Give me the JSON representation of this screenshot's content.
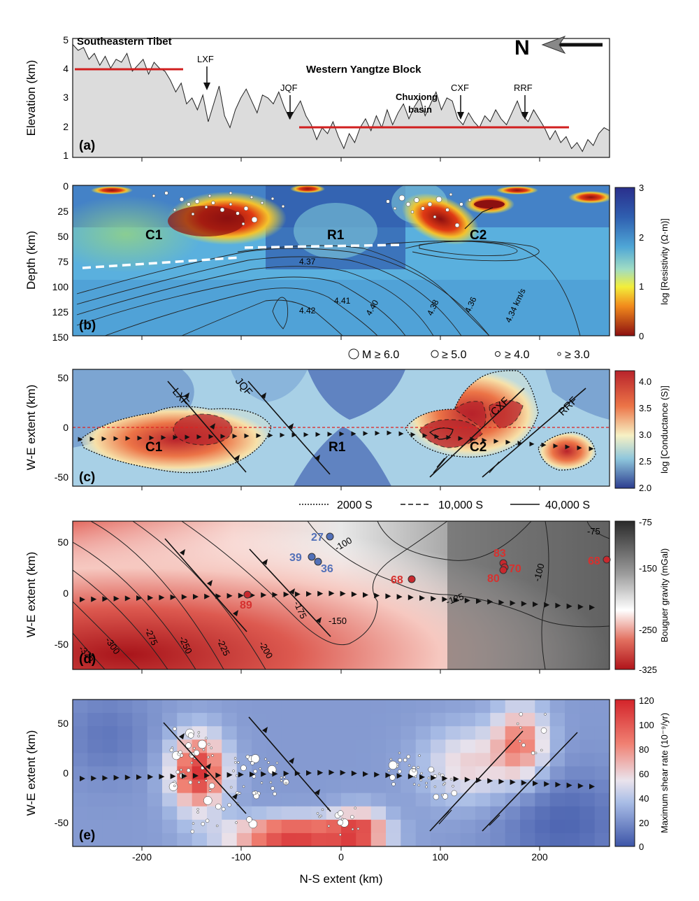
{
  "figure": {
    "axes": {
      "elevation_ylabel": "Elevation (km)",
      "depth_ylabel": "Depth (km)",
      "we_ylabel": "W-E extent (km)",
      "ns_xlabel": "N-S extent (km)",
      "x_ticks": [
        "-200",
        "-100",
        "0",
        "100",
        "200"
      ],
      "elev_ticks": [
        "1",
        "2",
        "3",
        "4",
        "5"
      ],
      "depth_ticks": [
        "0",
        "25",
        "50",
        "75",
        "100",
        "125",
        "150"
      ],
      "we_ticks_c": [
        "50",
        "0",
        "-50"
      ],
      "we_ticks_de": [
        "50",
        "0",
        "-50"
      ]
    },
    "panel_a": {
      "label": "(a)",
      "region_left": "Southeastern Tibet",
      "region_center": "Western Yangtze Block",
      "basin": "Chuxiong",
      "basin2": "basin",
      "faults": [
        "LXF",
        "JQF",
        "CXF",
        "RRF"
      ],
      "north": "N",
      "profile": [
        4.8,
        4.6,
        4.7,
        4.3,
        4.5,
        4.1,
        4.4,
        4.0,
        4.3,
        4.2,
        4.5,
        3.9,
        4.1,
        4.3,
        3.8,
        4.2,
        4.0,
        3.9,
        3.6,
        3.2,
        3.5,
        2.8,
        3.0,
        2.6,
        3.1,
        2.2,
        2.8,
        3.4,
        2.4,
        2.0,
        2.6,
        3.0,
        3.3,
        2.9,
        2.5,
        3.1,
        3.0,
        2.8,
        3.2,
        2.7,
        2.3,
        2.6,
        2.9,
        2.4,
        2.1,
        1.6,
        2.0,
        1.8,
        2.2,
        1.7,
        1.3,
        1.8,
        1.5,
        2.0,
        2.3,
        1.9,
        2.4,
        2.0,
        2.6,
        2.1,
        2.5,
        2.8,
        2.3,
        2.7,
        3.0,
        2.4,
        2.8,
        3.2,
        2.6,
        3.0,
        2.9,
        2.3,
        2.1,
        2.5,
        2.2,
        2.0,
        2.4,
        2.2,
        2.6,
        2.3,
        2.1,
        2.5,
        2.9,
        2.4,
        2.2,
        2.6,
        2.3,
        2.0,
        1.6,
        1.9,
        1.5,
        1.7,
        1.3,
        1.5,
        1.2,
        1.6,
        1.4,
        1.8,
        2.0,
        1.9
      ]
    },
    "panel_b": {
      "label": "(b)",
      "anomalies": [
        "C1",
        "R1",
        "C2"
      ],
      "contours": [
        "4.37",
        "4.42",
        "4.41",
        "4.40",
        "4.38",
        "4.36",
        "4.34 km/s"
      ],
      "colorbar_label": "log [Resistivity (Ω·m)]",
      "colorbar_ticks": [
        "3",
        "2",
        "1",
        "0"
      ],
      "legend": [
        "M ≥ 6.0",
        "≥ 5.0",
        "≥ 4.0",
        "≥ 3.0"
      ]
    },
    "panel_c": {
      "label": "(c)",
      "anomalies": [
        "C1",
        "R1",
        "C2"
      ],
      "faults": [
        "LXF",
        "JQF",
        "CXF",
        "RRF"
      ],
      "colorbar_label": "log [Conductance (S)]",
      "colorbar_ticks": [
        "4.0",
        "3.5",
        "3.0",
        "2.5",
        "2.0"
      ],
      "legend": [
        "2000 S",
        "10,000 S",
        "40,000 S"
      ]
    },
    "panel_d": {
      "label": "(d)",
      "colorbar_label": "Bouguer gravity (mGal)",
      "colorbar_ticks": [
        "-75",
        "-150",
        "-250",
        "-325"
      ],
      "contours": [
        "-325",
        "-300",
        "-275",
        "-250",
        "-225",
        "-200",
        "-175",
        "-150",
        "-125",
        "-100",
        "-100",
        "-75"
      ],
      "blue_points": [
        "27",
        "39",
        "36"
      ],
      "red_points": [
        "89",
        "68",
        "83",
        "70",
        "80",
        "68"
      ]
    },
    "panel_e": {
      "label": "(e)",
      "colorbar_label": "Maximum shear rate  (10⁻⁹/yr)",
      "colorbar_ticks": [
        "120",
        "100",
        "80",
        "60",
        "40",
        "20",
        "0"
      ]
    }
  }
}
